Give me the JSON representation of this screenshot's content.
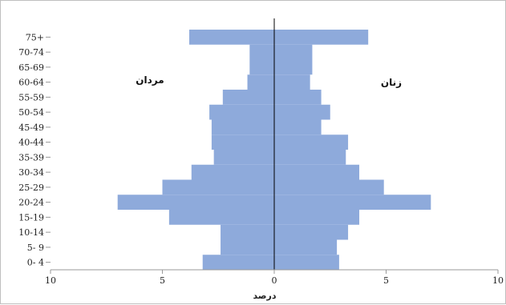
{
  "chart_data": {
    "type": "bar",
    "orientation": "horizontal",
    "subtype": "population-pyramid",
    "categories": [
      "0- 4",
      "5- 9",
      "10-14",
      "15-19",
      "20-24",
      "25-29",
      "30-34",
      "35-39",
      "40-44",
      "45-49",
      "50-54",
      "55-59",
      "60-64",
      "65-69",
      "70-74",
      "75+"
    ],
    "series": [
      {
        "name": "مردان",
        "side": "left",
        "values": [
          3.2,
          2.4,
          2.4,
          4.7,
          7.0,
          5.0,
          3.7,
          2.7,
          2.8,
          2.8,
          2.9,
          2.3,
          1.2,
          1.1,
          1.1,
          3.8
        ]
      },
      {
        "name": "زنان",
        "side": "right",
        "values": [
          2.9,
          2.8,
          3.3,
          3.8,
          7.0,
          4.9,
          3.8,
          3.2,
          3.3,
          2.1,
          2.5,
          2.1,
          1.6,
          1.7,
          1.7,
          4.2
        ]
      }
    ],
    "xticks": [
      "10",
      "5",
      "0",
      "5",
      "10"
    ],
    "xlim": [
      -10,
      10
    ],
    "xlabel": "درصد",
    "bar_color": "#8eaadb",
    "axis_color": "#000000"
  }
}
